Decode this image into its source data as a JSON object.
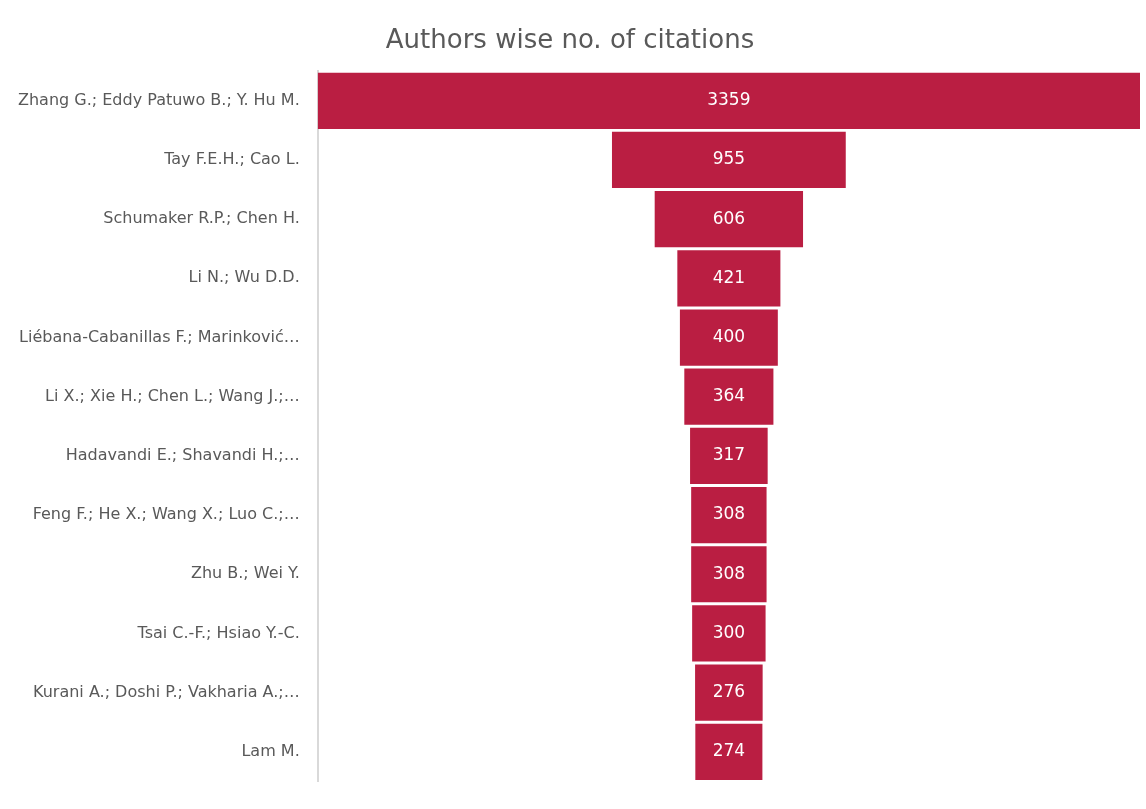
{
  "chart_data": {
    "type": "other",
    "title": "Authors wise no. of citations",
    "categories": [
      "Zhang G.; Eddy Patuwo B.; Y. Hu M.",
      "Tay F.E.H.; Cao L.",
      "Schumaker R.P.; Chen H.",
      "Li N.; Wu D.D.",
      "Liébana-Cabanillas F.; Marinković…",
      "Li X.; Xie H.; Chen L.; Wang J.;…",
      "Hadavandi E.; Shavandi H.;…",
      "Feng F.; He X.; Wang X.; Luo C.;…",
      "Zhu B.; Wei Y.",
      "Tsai C.-F.; Hsiao Y.-C.",
      "Kurani A.; Doshi P.; Vakharia A.;…",
      "Lam M."
    ],
    "values": [
      3359,
      955,
      606,
      421,
      400,
      364,
      317,
      308,
      308,
      300,
      276,
      274
    ],
    "color": "#ba1e42",
    "data_labels": true
  }
}
